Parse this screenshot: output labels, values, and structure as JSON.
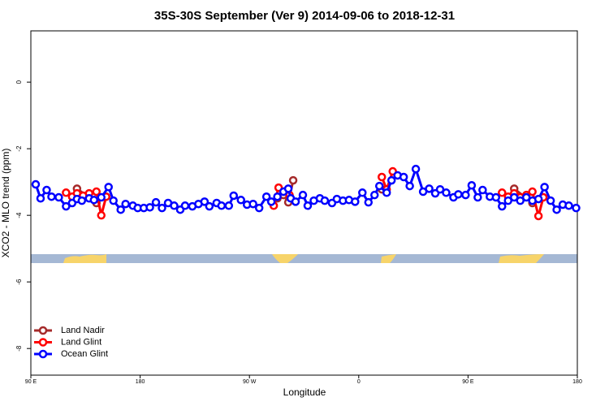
{
  "chart_data": {
    "type": "line",
    "title": "35S-30S September (Ver 9)   2014-09-06 to 2018-12-31",
    "xlabel": "Longitude",
    "ylabel": "XCO2 - MLO trend (ppm)",
    "xlim": [
      90,
      540
    ],
    "ylim": [
      -8.8,
      1.54
    ],
    "xticks": [
      {
        "value": 90,
        "label": "90 E"
      },
      180,
      {
        "value": 270,
        "label": "90 W"
      },
      {
        "value": 360,
        "label": "0"
      },
      {
        "value": 450,
        "label": "90 E"
      },
      {
        "value": 540,
        "label": "180"
      }
    ],
    "yticks": [
      0,
      -2,
      -4,
      -6,
      -8
    ],
    "legend": "lower left",
    "series": [
      {
        "name": "Land Nadir",
        "color": "#a52a2a",
        "x": [
          128,
          144,
          null,
          293,
          298,
          302,
          306,
          null,
          379,
          null,
          488,
          503
        ],
        "values": [
          -3.2,
          -3.63,
          null,
          -3.49,
          -3.39,
          -3.61,
          -2.95,
          null,
          -3.22,
          null,
          -3.2,
          -3.63
        ]
      },
      {
        "name": "Land Glint",
        "color": "#ff0000",
        "x": [
          119,
          124,
          128,
          133,
          138,
          144,
          148,
          152,
          null,
          290,
          294,
          298,
          303,
          null,
          379,
          383,
          388,
          null,
          478,
          483,
          488,
          493,
          498,
          503,
          508,
          512
        ],
        "values": [
          -3.32,
          -3.44,
          -3.34,
          -3.41,
          -3.34,
          -3.29,
          -4.0,
          -3.44,
          null,
          -3.71,
          -3.17,
          -3.29,
          -3.39,
          null,
          -2.85,
          -3.22,
          -2.68,
          null,
          -3.32,
          -3.44,
          -3.34,
          -3.46,
          -3.39,
          -3.29,
          -4.02,
          -3.46
        ]
      },
      {
        "name": "Ocean Glint",
        "color": "#0000ff",
        "x": [
          94,
          98,
          103,
          107,
          113,
          119,
          124,
          128,
          132,
          138,
          142,
          148,
          154,
          158,
          164,
          168,
          174,
          178,
          183,
          188,
          193,
          198,
          203,
          208,
          213,
          217,
          223,
          228,
          233,
          237,
          243,
          247,
          253,
          257,
          263,
          268,
          273,
          278,
          284,
          288,
          293,
          298,
          302,
          304,
          308,
          314,
          318,
          323,
          328,
          332,
          338,
          342,
          347,
          352,
          357,
          363,
          368,
          373,
          377,
          383,
          387,
          392,
          397,
          402,
          407,
          413,
          418,
          423,
          427,
          432,
          438,
          442,
          448,
          453,
          458,
          462,
          468,
          473,
          478,
          483,
          488,
          493,
          498,
          503,
          508,
          513,
          518,
          523,
          528,
          533,
          539
        ],
        "values": [
          -3.07,
          -3.49,
          -3.24,
          -3.44,
          -3.46,
          -3.73,
          -3.63,
          -3.51,
          -3.56,
          -3.49,
          -3.54,
          -3.46,
          -3.15,
          -3.56,
          -3.83,
          -3.66,
          -3.71,
          -3.78,
          -3.78,
          -3.76,
          -3.61,
          -3.78,
          -3.63,
          -3.71,
          -3.83,
          -3.71,
          -3.73,
          -3.66,
          -3.59,
          -3.73,
          -3.63,
          -3.71,
          -3.71,
          -3.41,
          -3.54,
          -3.68,
          -3.66,
          -3.78,
          -3.44,
          -3.59,
          -3.44,
          -3.29,
          -3.2,
          -3.49,
          -3.59,
          -3.39,
          -3.71,
          -3.56,
          -3.49,
          -3.56,
          -3.63,
          -3.51,
          -3.56,
          -3.54,
          -3.59,
          -3.32,
          -3.61,
          -3.39,
          -3.12,
          -3.32,
          -2.95,
          -2.8,
          -2.85,
          -3.12,
          -2.61,
          -3.29,
          -3.2,
          -3.34,
          -3.22,
          -3.32,
          -3.46,
          -3.37,
          -3.39,
          -3.1,
          -3.46,
          -3.24,
          -3.44,
          -3.46,
          -3.73,
          -3.56,
          -3.46,
          -3.56,
          -3.46,
          -3.56,
          -3.51,
          -3.15,
          -3.56,
          -3.83,
          -3.68,
          -3.71,
          -3.78
        ]
      }
    ]
  }
}
